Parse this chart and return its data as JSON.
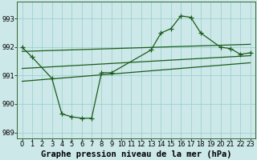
{
  "bg_color": "#cce8e8",
  "grid_color": "#99cccc",
  "line_color": "#1a5c1a",
  "line_width": 0.9,
  "marker": "+",
  "marker_size": 4,
  "marker_lw": 0.9,
  "xlim": [
    -0.5,
    23.5
  ],
  "ylim": [
    988.8,
    993.6
  ],
  "yticks": [
    989,
    990,
    991,
    992,
    993
  ],
  "xticks": [
    0,
    1,
    2,
    3,
    4,
    5,
    6,
    7,
    8,
    9,
    10,
    11,
    12,
    13,
    14,
    15,
    16,
    17,
    18,
    19,
    20,
    21,
    22,
    23
  ],
  "xlabel": "Graphe pression niveau de la mer (hPa)",
  "xlabel_fontsize": 7.5,
  "tick_fontsize": 6.0,
  "series1_x": [
    0,
    1,
    3,
    4,
    5,
    6,
    7,
    8,
    9,
    13,
    14,
    15,
    16,
    17,
    18,
    20,
    21,
    22,
    23
  ],
  "series1_y": [
    992.0,
    991.65,
    990.9,
    989.65,
    989.55,
    989.5,
    989.5,
    991.1,
    991.1,
    991.9,
    992.5,
    992.65,
    993.1,
    993.05,
    992.5,
    992.0,
    991.95,
    991.75,
    991.8
  ],
  "series2_x": [
    0,
    23
  ],
  "series2_y": [
    991.85,
    992.1
  ],
  "series3_x": [
    0,
    23
  ],
  "series3_y": [
    991.25,
    991.7
  ],
  "series4_x": [
    0,
    23
  ],
  "series4_y": [
    990.8,
    991.45
  ],
  "spine_color": "#336633"
}
